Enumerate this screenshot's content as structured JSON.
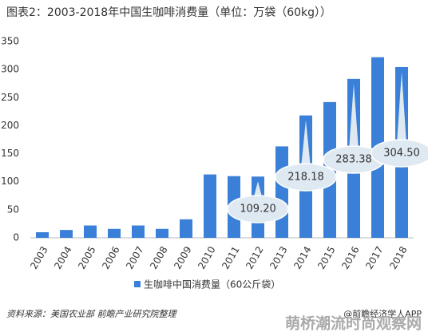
{
  "chart_data": {
    "type": "bar",
    "title": "图表2：2003-2018年中国生咖啡消费量（单位：万袋（60kg））",
    "categories": [
      "2003",
      "2004",
      "2005",
      "2006",
      "2007",
      "2008",
      "2009",
      "2010",
      "2011",
      "2012",
      "2013",
      "2014",
      "2015",
      "2016",
      "2017",
      "2018"
    ],
    "series": [
      {
        "name": "生咖啡中国消费量（60公斤袋）",
        "color": "#3a7fd8",
        "values": [
          10,
          14,
          22,
          16,
          22,
          16,
          33,
          113,
          110,
          109.2,
          163,
          218.18,
          242,
          283.38,
          322,
          304.5
        ],
        "value_labels": [
          null,
          null,
          null,
          null,
          null,
          null,
          null,
          null,
          null,
          "109.20",
          null,
          "218.18",
          null,
          "283.38",
          null,
          "304.50"
        ]
      }
    ],
    "ylim": [
      0,
      350
    ],
    "yticks": [
      0,
      50,
      100,
      150,
      200,
      250,
      300,
      350
    ],
    "grid": false,
    "source": "资料来源：美国农业部 前瞻产业研究院整理",
    "credit": "@前瞻经济学人APP",
    "watermark": "萌桥潮流时尚观察网"
  }
}
